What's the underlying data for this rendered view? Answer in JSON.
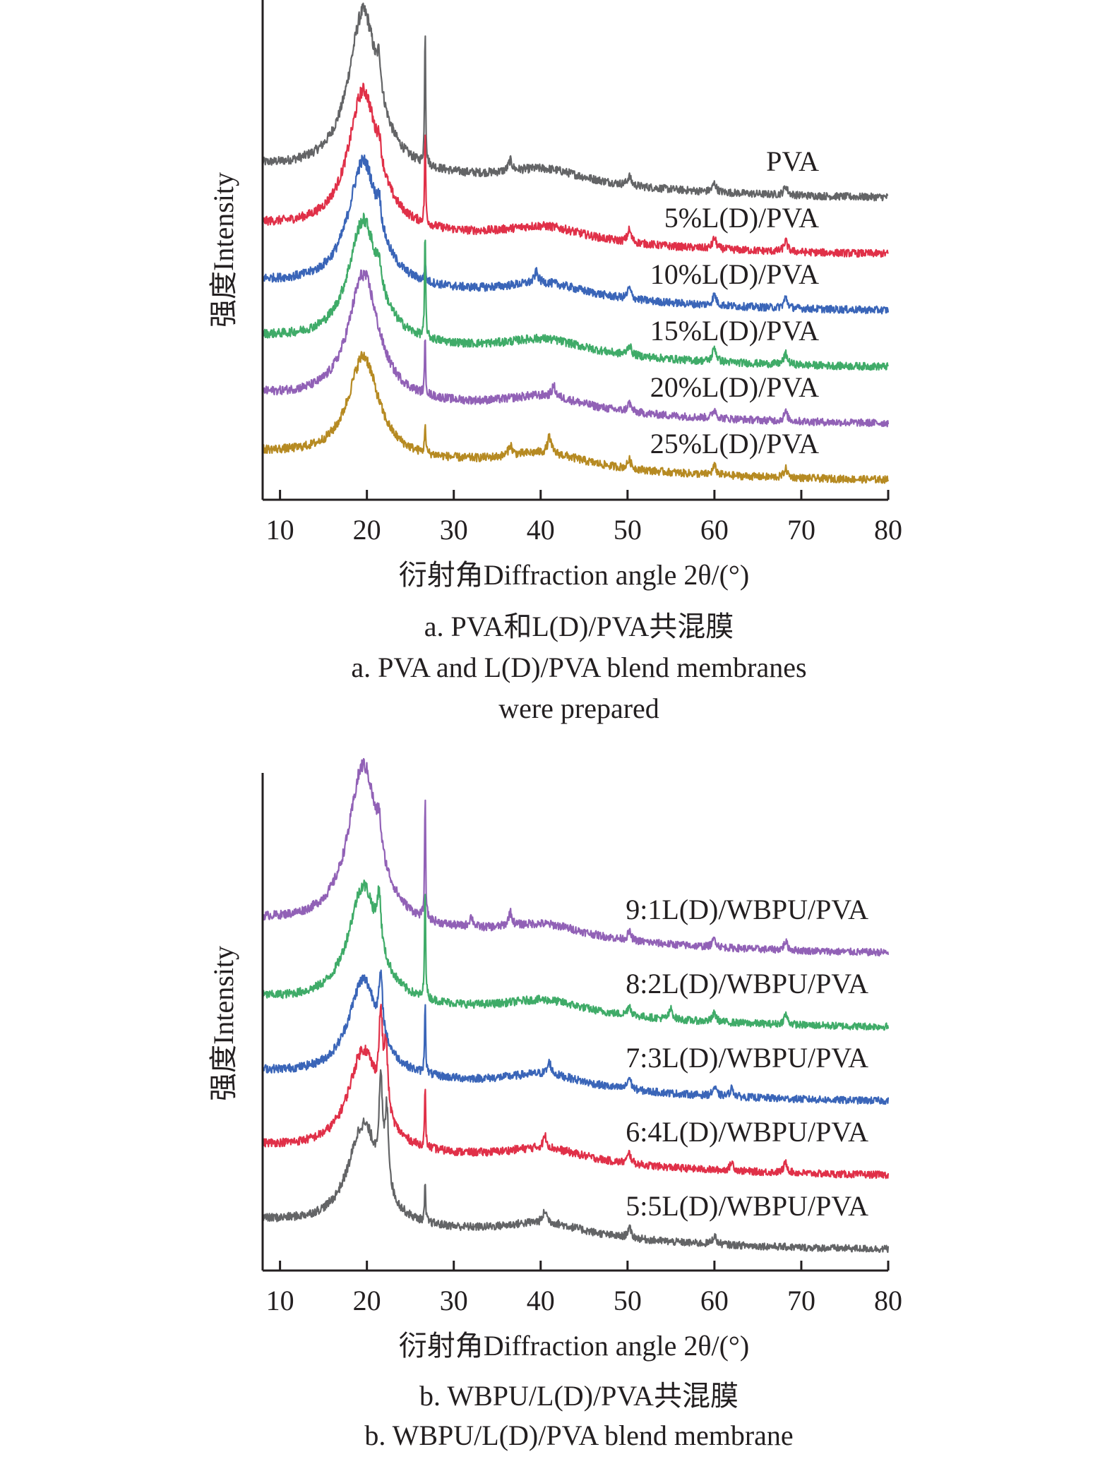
{
  "chart_data": [
    {
      "type": "line",
      "panel": "a",
      "xlabel": "衍射角Diffraction angle 2θ/(°)",
      "ylabel": "强度Intensity",
      "xlim": [
        8,
        80
      ],
      "xticks": [
        10,
        20,
        30,
        40,
        50,
        60,
        70,
        80
      ],
      "yticks": [],
      "grid": false,
      "legend": "inline-right",
      "caption_cn": "a. PVA和L(D)/PVA共混膜",
      "caption_en_line1": "a. PVA and L(D)/PVA blend membranes",
      "caption_en_line2": "were prepared",
      "series": [
        {
          "name": "PVA",
          "color": "#636466",
          "offset": 5,
          "baseline_start": 1.55,
          "baseline_end": 0.0,
          "main_peak_x": 19.6,
          "main_peak_height": 4.6,
          "sharp_peak_x": 26.7,
          "sharp_peak_height": 4.0,
          "minor_peaks": [
            [
              21.4,
              0.9
            ],
            [
              36.5,
              0.3
            ],
            [
              50.2,
              0.25
            ],
            [
              60.0,
              0.25
            ],
            [
              68.2,
              0.25
            ]
          ]
        },
        {
          "name": "5%L(D)/PVA",
          "color": "#e03048",
          "offset": 4,
          "baseline_start": 1.45,
          "baseline_end": 0.0,
          "main_peak_x": 19.6,
          "main_peak_height": 4.0,
          "sharp_peak_x": 26.7,
          "sharp_peak_height": 2.6,
          "minor_peaks": [
            [
              21.4,
              0.6
            ],
            [
              50.2,
              0.35
            ],
            [
              60.0,
              0.3
            ],
            [
              68.2,
              0.3
            ]
          ]
        },
        {
          "name": "10%L(D)/PVA",
          "color": "#3a65b8",
          "offset": 3,
          "baseline_start": 1.45,
          "baseline_end": 0.0,
          "main_peak_x": 19.6,
          "main_peak_height": 3.6,
          "sharp_peak_x": 26.7,
          "sharp_peak_height": 0.6,
          "minor_peaks": [
            [
              21.4,
              0.7
            ],
            [
              39.5,
              0.3
            ],
            [
              50.2,
              0.3
            ],
            [
              60.0,
              0.3
            ],
            [
              68.2,
              0.3
            ]
          ]
        },
        {
          "name": "15%L(D)/PVA",
          "color": "#3fab68",
          "offset": 2,
          "baseline_start": 1.5,
          "baseline_end": 0.0,
          "main_peak_x": 19.6,
          "main_peak_height": 3.5,
          "sharp_peak_x": 26.7,
          "sharp_peak_height": 3.0,
          "minor_peaks": [
            [
              21.4,
              0.6
            ],
            [
              50.2,
              0.3
            ],
            [
              60.0,
              0.4
            ],
            [
              68.2,
              0.3
            ]
          ]
        },
        {
          "name": "20%L(D)/PVA",
          "color": "#9161b6",
          "offset": 1,
          "baseline_start": 1.45,
          "baseline_end": 0.0,
          "main_peak_x": 19.6,
          "main_peak_height": 3.6,
          "sharp_peak_x": 26.7,
          "sharp_peak_height": 1.6,
          "minor_peaks": [
            [
              41.5,
              0.3
            ],
            [
              50.2,
              0.25
            ],
            [
              60.0,
              0.25
            ],
            [
              68.2,
              0.25
            ]
          ]
        },
        {
          "name": "25%L(D)/PVA",
          "color": "#b68a22",
          "offset": 0,
          "baseline_start": 1.4,
          "baseline_end": 0.0,
          "main_peak_x": 19.6,
          "main_peak_height": 2.9,
          "sharp_peak_x": 26.7,
          "sharp_peak_height": 0.9,
          "minor_peaks": [
            [
              36.5,
              0.3
            ],
            [
              41.0,
              0.45
            ],
            [
              50.2,
              0.25
            ],
            [
              60.0,
              0.25
            ],
            [
              68.2,
              0.25
            ]
          ]
        }
      ]
    },
    {
      "type": "line",
      "panel": "b",
      "xlabel": "衍射角Diffraction angle 2θ/(°)",
      "ylabel": "强度Intensity",
      "xlim": [
        8,
        80
      ],
      "xticks": [
        10,
        20,
        30,
        40,
        50,
        60,
        70,
        80
      ],
      "yticks": [],
      "grid": false,
      "legend": "inline-right",
      "caption_cn": "b. WBPU/L(D)/PVA共混膜",
      "caption_en": "b. WBPU/L(D)/PVA blend membrane",
      "series": [
        {
          "name": "9:1L(D)/WBPU/PVA",
          "color": "#9161b6",
          "offset": 4,
          "baseline_start": 1.7,
          "baseline_end": 0.0,
          "main_peak_x": 19.6,
          "main_peak_height": 4.8,
          "sharp_peak_x": 26.7,
          "sharp_peak_height": 3.6,
          "minor_peaks": [
            [
              21.4,
              0.8
            ],
            [
              32.0,
              0.3
            ],
            [
              36.5,
              0.4
            ],
            [
              50.2,
              0.25
            ],
            [
              60.0,
              0.25
            ],
            [
              68.2,
              0.25
            ]
          ]
        },
        {
          "name": "8:2L(D)/WBPU/PVA",
          "color": "#3fab68",
          "offset": 3,
          "baseline_start": 1.5,
          "baseline_end": 0.0,
          "main_peak_x": 19.6,
          "main_peak_height": 3.5,
          "sharp_peak_x": 26.7,
          "sharp_peak_height": 3.5,
          "minor_peaks": [
            [
              21.4,
              1.5
            ],
            [
              50.2,
              0.3
            ],
            [
              55.0,
              0.3
            ],
            [
              60.0,
              0.25
            ],
            [
              68.2,
              0.3
            ]
          ]
        },
        {
          "name": "7:3L(D)/WBPU/PVA",
          "color": "#3a65b8",
          "offset": 2,
          "baseline_start": 1.55,
          "baseline_end": 0.0,
          "main_peak_x": 19.6,
          "main_peak_height": 2.9,
          "sharp_peak_x": 26.7,
          "sharp_peak_height": 2.2,
          "minor_peaks": [
            [
              21.6,
              1.6
            ],
            [
              41.0,
              0.35
            ],
            [
              50.2,
              0.35
            ],
            [
              60.0,
              0.25
            ],
            [
              62.0,
              0.25
            ]
          ]
        },
        {
          "name": "6:4L(D)/WBPU/PVA",
          "color": "#e03048",
          "offset": 1,
          "baseline_start": 1.55,
          "baseline_end": 0.0,
          "main_peak_x": 19.6,
          "main_peak_height": 3.0,
          "sharp_peak_x": 26.7,
          "sharp_peak_height": 1.7,
          "minor_peaks": [
            [
              21.6,
              2.5
            ],
            [
              22.2,
              1.9
            ],
            [
              40.5,
              0.35
            ],
            [
              50.2,
              0.3
            ],
            [
              62.0,
              0.25
            ],
            [
              68.2,
              0.3
            ]
          ]
        },
        {
          "name": "5:5L(D)/WBPU/PVA",
          "color": "#636466",
          "offset": 0,
          "baseline_start": 1.5,
          "baseline_end": 0.0,
          "main_peak_x": 19.6,
          "main_peak_height": 3.0,
          "sharp_peak_x": 26.7,
          "sharp_peak_height": 1.1,
          "minor_peaks": [
            [
              21.6,
              2.7
            ],
            [
              22.3,
              2.3
            ],
            [
              40.5,
              0.35
            ],
            [
              50.2,
              0.3
            ],
            [
              60.0,
              0.25
            ]
          ]
        }
      ]
    }
  ]
}
